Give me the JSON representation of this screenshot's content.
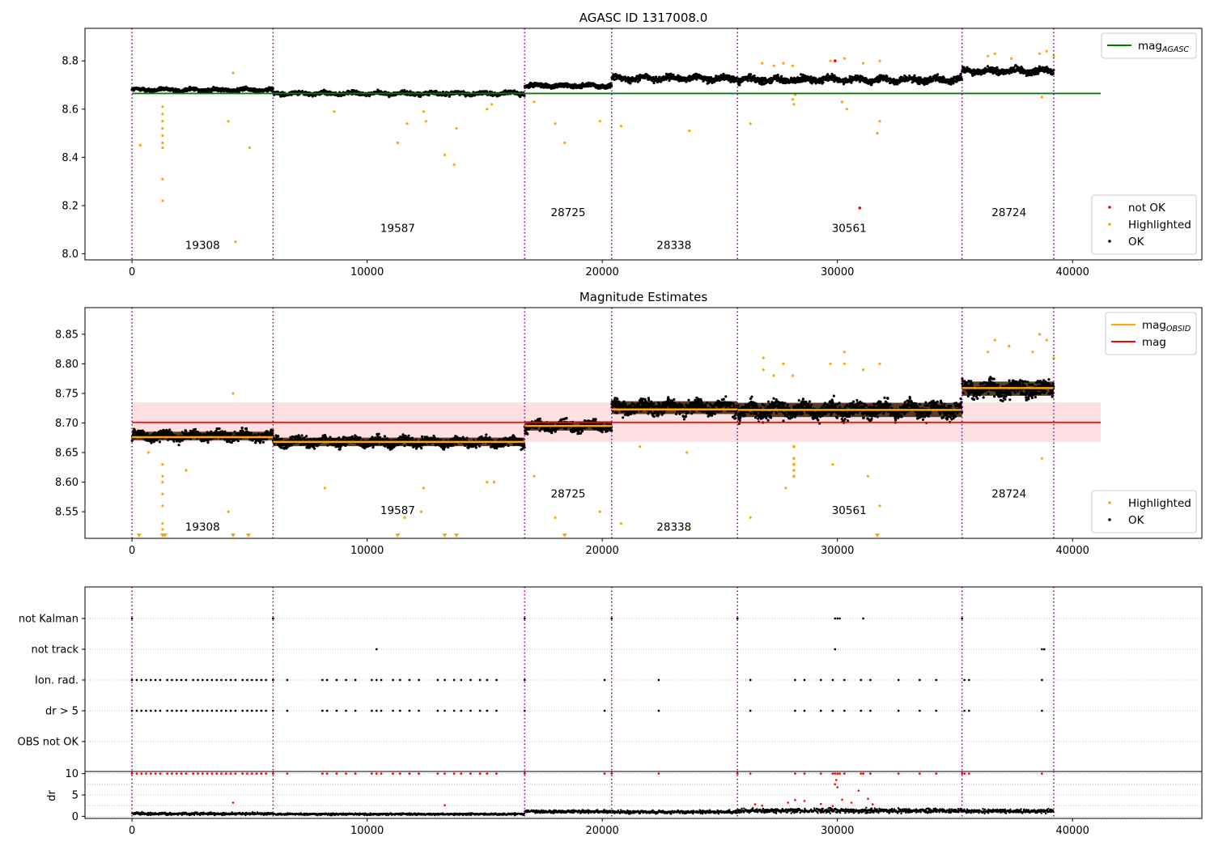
{
  "chart_data": [
    {
      "id": "agasc",
      "type": "scatter",
      "title": "AGASC ID 1317008.0",
      "xlim": [
        -2000,
        45500
      ],
      "ylim": [
        7.975,
        8.935
      ],
      "yticks": [
        8.0,
        8.2,
        8.4,
        8.6,
        8.8
      ],
      "ytick_labels": [
        "8.0",
        "8.2",
        "8.4",
        "8.6",
        "8.8"
      ],
      "xticks": [
        0,
        10000,
        20000,
        30000,
        40000
      ],
      "xtick_labels": [
        "0",
        "10000",
        "20000",
        "30000",
        "40000"
      ],
      "obs_boundaries": [
        0,
        6000,
        16700,
        20400,
        25750,
        35300,
        39200
      ],
      "obs_labels": [
        {
          "text": "19308",
          "x": 3000,
          "y": 8.02
        },
        {
          "text": "19587",
          "x": 11300,
          "y": 8.09
        },
        {
          "text": "28725",
          "x": 18550,
          "y": 8.157
        },
        {
          "text": "28338",
          "x": 23050,
          "y": 8.02
        },
        {
          "text": "30561",
          "x": 30500,
          "y": 8.09
        },
        {
          "text": "28724",
          "x": 37300,
          "y": 8.157
        }
      ],
      "hline": {
        "name": "mag_AGASC",
        "value": 8.665,
        "x_range": [
          0,
          41200
        ],
        "color": "#008000"
      },
      "segments": [
        {
          "x0": 0,
          "x1": 6000,
          "level": 8.68,
          "spread": 0.012
        },
        {
          "x0": 6000,
          "x1": 16700,
          "level": 8.665,
          "spread": 0.012
        },
        {
          "x0": 16700,
          "x1": 20400,
          "level": 8.697,
          "spread": 0.014
        },
        {
          "x0": 20400,
          "x1": 25750,
          "level": 8.728,
          "spread": 0.018
        },
        {
          "x0": 25750,
          "x1": 35300,
          "level": 8.722,
          "spread": 0.02
        },
        {
          "x0": 35300,
          "x1": 39200,
          "level": 8.758,
          "spread": 0.02
        }
      ],
      "highlighted_points": [
        [
          1300,
          8.61
        ],
        [
          1300,
          8.58
        ],
        [
          1300,
          8.55
        ],
        [
          1300,
          8.52
        ],
        [
          1300,
          8.49
        ],
        [
          1300,
          8.46
        ],
        [
          1300,
          8.44
        ],
        [
          1300,
          8.31
        ],
        [
          1300,
          8.22
        ],
        [
          350,
          8.45
        ],
        [
          4100,
          8.55
        ],
        [
          4300,
          8.75
        ],
        [
          4400,
          8.05
        ],
        [
          5000,
          8.44
        ],
        [
          8600,
          8.59
        ],
        [
          11300,
          8.46
        ],
        [
          11700,
          8.54
        ],
        [
          12400,
          8.59
        ],
        [
          12500,
          8.55
        ],
        [
          13300,
          8.41
        ],
        [
          13700,
          8.37
        ],
        [
          13800,
          8.52
        ],
        [
          15100,
          8.6
        ],
        [
          15300,
          8.62
        ],
        [
          17100,
          8.63
        ],
        [
          18000,
          8.54
        ],
        [
          18400,
          8.46
        ],
        [
          19900,
          8.55
        ],
        [
          20800,
          8.53
        ],
        [
          23700,
          8.51
        ],
        [
          26300,
          8.54
        ],
        [
          28100,
          8.64
        ],
        [
          28150,
          8.62
        ],
        [
          28200,
          8.66
        ],
        [
          30200,
          8.63
        ],
        [
          30400,
          8.6
        ],
        [
          31700,
          8.5
        ],
        [
          31800,
          8.55
        ],
        [
          38700,
          8.65
        ],
        [
          26800,
          8.79
        ],
        [
          27300,
          8.78
        ],
        [
          27700,
          8.79
        ],
        [
          28100,
          8.78
        ],
        [
          29700,
          8.8
        ],
        [
          30300,
          8.81
        ],
        [
          31100,
          8.79
        ],
        [
          31800,
          8.8
        ],
        [
          36400,
          8.82
        ],
        [
          36700,
          8.83
        ],
        [
          37400,
          8.81
        ],
        [
          38600,
          8.83
        ],
        [
          38900,
          8.84
        ],
        [
          39200,
          8.82
        ]
      ],
      "not_ok_points": [
        [
          29900,
          8.8
        ],
        [
          30950,
          8.19
        ]
      ],
      "legends": [
        {
          "position": "top-right",
          "entries": [
            {
              "label": "mag",
              "sub": "AGASC",
              "kind": "line",
              "color": "#008000"
            }
          ]
        },
        {
          "position": "lower-right",
          "entries": [
            {
              "label": "not OK",
              "kind": "dot",
              "color": "#ff0000"
            },
            {
              "label": "Highlighted",
              "kind": "dot",
              "color": "#ffa500"
            },
            {
              "label": "OK",
              "kind": "dot",
              "color": "#000000"
            }
          ]
        }
      ]
    },
    {
      "id": "estimates",
      "type": "scatter",
      "title": "Magnitude Estimates",
      "xlim": [
        -2000,
        45500
      ],
      "ylim": [
        8.505,
        8.895
      ],
      "yticks": [
        8.55,
        8.6,
        8.65,
        8.7,
        8.75,
        8.8,
        8.85
      ],
      "ytick_labels": [
        "8.55",
        "8.60",
        "8.65",
        "8.70",
        "8.75",
        "8.80",
        "8.85"
      ],
      "xticks": [
        0,
        10000,
        20000,
        30000,
        40000
      ],
      "xtick_labels": [
        "0",
        "10000",
        "20000",
        "30000",
        "40000"
      ],
      "obs_boundaries": [
        0,
        6000,
        16700,
        20400,
        25750,
        35300,
        39200
      ],
      "obs_labels": [
        {
          "text": "19308",
          "x": 3000,
          "y": 8.518
        },
        {
          "text": "19587",
          "x": 11300,
          "y": 8.546
        },
        {
          "text": "28725",
          "x": 18550,
          "y": 8.574
        },
        {
          "text": "28338",
          "x": 23050,
          "y": 8.518
        },
        {
          "text": "30561",
          "x": 30500,
          "y": 8.546
        },
        {
          "text": "28724",
          "x": 37300,
          "y": 8.574
        }
      ],
      "mag": {
        "value": 8.701,
        "band": [
          8.668,
          8.735
        ],
        "x_range": [
          0,
          41200
        ],
        "color": "#ff0000"
      },
      "mag_obsid": [
        {
          "x0": 0,
          "x1": 6000,
          "value": 8.676
        },
        {
          "x0": 6000,
          "x1": 16700,
          "value": 8.668
        },
        {
          "x0": 16700,
          "x1": 20400,
          "value": 8.695
        },
        {
          "x0": 20400,
          "x1": 25750,
          "value": 8.723
        },
        {
          "x0": 25750,
          "x1": 35300,
          "value": 8.722
        },
        {
          "x0": 35300,
          "x1": 39200,
          "value": 8.759
        }
      ],
      "segments": [
        {
          "x0": 0,
          "x1": 6000,
          "level": 8.678,
          "spread": 0.012
        },
        {
          "x0": 6000,
          "x1": 16700,
          "level": 8.668,
          "spread": 0.012
        },
        {
          "x0": 16700,
          "x1": 20400,
          "level": 8.695,
          "spread": 0.013
        },
        {
          "x0": 20400,
          "x1": 25750,
          "level": 8.726,
          "spread": 0.018
        },
        {
          "x0": 25750,
          "x1": 35300,
          "level": 8.722,
          "spread": 0.02
        },
        {
          "x0": 35300,
          "x1": 39200,
          "level": 8.758,
          "spread": 0.02
        }
      ],
      "highlighted_points": [
        [
          1300,
          8.63
        ],
        [
          1300,
          8.61
        ],
        [
          1300,
          8.6
        ],
        [
          1300,
          8.58
        ],
        [
          1300,
          8.56
        ],
        [
          1300,
          8.53
        ],
        [
          1300,
          8.52
        ],
        [
          700,
          8.65
        ],
        [
          2300,
          8.62
        ],
        [
          4100,
          8.55
        ],
        [
          4300,
          8.75
        ],
        [
          8200,
          8.59
        ],
        [
          11600,
          8.54
        ],
        [
          12300,
          8.55
        ],
        [
          12400,
          8.59
        ],
        [
          15100,
          8.6
        ],
        [
          15400,
          8.6
        ],
        [
          17100,
          8.61
        ],
        [
          18000,
          8.54
        ],
        [
          19900,
          8.55
        ],
        [
          20800,
          8.53
        ],
        [
          21600,
          8.66
        ],
        [
          23600,
          8.65
        ],
        [
          23700,
          8.52
        ],
        [
          26300,
          8.54
        ],
        [
          27800,
          8.59
        ],
        [
          29800,
          8.63
        ],
        [
          31300,
          8.61
        ],
        [
          31800,
          8.56
        ],
        [
          38700,
          8.64
        ],
        [
          26850,
          8.81
        ],
        [
          26850,
          8.79
        ],
        [
          27300,
          8.78
        ],
        [
          27700,
          8.8
        ],
        [
          28100,
          8.78
        ],
        [
          29700,
          8.8
        ],
        [
          30300,
          8.82
        ],
        [
          30300,
          8.8
        ],
        [
          31100,
          8.79
        ],
        [
          31800,
          8.8
        ],
        [
          36400,
          8.82
        ],
        [
          36700,
          8.84
        ],
        [
          37300,
          8.83
        ],
        [
          38300,
          8.82
        ],
        [
          38600,
          8.85
        ],
        [
          38900,
          8.84
        ],
        [
          39200,
          8.81
        ]
      ],
      "dip_points": [
        [
          28150,
          8.66
        ],
        [
          28150,
          8.64
        ],
        [
          28150,
          8.63
        ],
        [
          28150,
          8.62
        ],
        [
          28150,
          8.61
        ]
      ],
      "clipped_points": [
        300,
        1300,
        1400,
        4300,
        4950,
        11300,
        13300,
        13800,
        18400,
        31700
      ],
      "legends": [
        {
          "position": "top-right",
          "entries": [
            {
              "label": "mag",
              "sub": "OBSID",
              "kind": "line",
              "color": "#ffa500"
            },
            {
              "label": "mag",
              "sub": "",
              "kind": "line",
              "color": "#ff0000"
            }
          ]
        },
        {
          "position": "lower-right",
          "entries": [
            {
              "label": "Highlighted",
              "kind": "dot",
              "color": "#ffa500"
            },
            {
              "label": "OK",
              "kind": "dot",
              "color": "#000000"
            }
          ]
        }
      ]
    },
    {
      "id": "flags",
      "type": "scatter",
      "categories": [
        "not Kalman",
        "not track",
        "Ion. rad.",
        "dr > 5",
        "OBS not OK"
      ],
      "xlim": [
        -2000,
        45500
      ],
      "obs_boundaries": [
        0,
        6000,
        16700,
        20400,
        25750,
        35300,
        39200
      ],
      "flag_points": {
        "not Kalman": [
          0,
          6000,
          16700,
          20400,
          25750,
          29900,
          30000,
          30100,
          31100,
          35300
        ],
        "not track": [
          10400,
          29900,
          38700,
          38800
        ],
        "Ion. rad.": [
          0,
          200,
          400,
          600,
          800,
          1000,
          1200,
          1500,
          1700,
          1900,
          2100,
          2300,
          2600,
          2800,
          3000,
          3200,
          3400,
          3600,
          3800,
          4000,
          4200,
          4400,
          4700,
          4900,
          5100,
          5300,
          5500,
          5700,
          6000,
          6600,
          8100,
          8300,
          8700,
          9100,
          9500,
          10200,
          10400,
          10600,
          11100,
          11400,
          11800,
          12200,
          13000,
          13300,
          13700,
          14000,
          14400,
          14800,
          15100,
          15500,
          16700,
          20100,
          22400,
          26300,
          28200,
          28600,
          29300,
          29800,
          30300,
          31000,
          31400,
          32600,
          33500,
          34200,
          35400,
          35600,
          38700
        ],
        "dr > 5": [
          0,
          200,
          400,
          600,
          800,
          1000,
          1200,
          1500,
          1700,
          1900,
          2100,
          2300,
          2600,
          2800,
          3000,
          3200,
          3400,
          3600,
          3800,
          4000,
          4200,
          4400,
          4700,
          4900,
          5100,
          5300,
          5500,
          5700,
          6000,
          6600,
          8100,
          8300,
          8700,
          9100,
          9500,
          10200,
          10400,
          10600,
          11100,
          11400,
          11800,
          12200,
          13000,
          13300,
          13700,
          14000,
          14400,
          14800,
          15100,
          15500,
          16700,
          20100,
          22400,
          26300,
          28200,
          28600,
          29300,
          29800,
          30300,
          31000,
          31400,
          32600,
          33500,
          34200,
          35400,
          35600,
          38700
        ],
        "OBS not OK": []
      }
    },
    {
      "id": "dr",
      "type": "scatter",
      "ylabel": "dr",
      "xlim": [
        -2000,
        45500
      ],
      "ylim": [
        -0.5,
        10.5
      ],
      "yticks": [
        0,
        5,
        10
      ],
      "ytick_labels": [
        "0",
        "5",
        "10"
      ],
      "xticks": [
        0,
        10000,
        20000,
        30000,
        40000
      ],
      "xtick_labels": [
        "0",
        "10000",
        "20000",
        "30000",
        "40000"
      ],
      "obs_boundaries": [
        0,
        6000,
        16700,
        20400,
        25750,
        35300,
        39200
      ],
      "segments": [
        {
          "x0": 0,
          "x1": 6000,
          "level": 0.6,
          "spread": 0.4
        },
        {
          "x0": 6000,
          "x1": 16700,
          "level": 0.5,
          "spread": 0.3
        },
        {
          "x0": 16700,
          "x1": 20400,
          "level": 1.1,
          "spread": 0.5
        },
        {
          "x0": 20400,
          "x1": 25750,
          "level": 1.0,
          "spread": 0.5
        },
        {
          "x0": 25750,
          "x1": 35300,
          "level": 1.3,
          "spread": 0.7
        },
        {
          "x0": 35300,
          "x1": 39200,
          "level": 1.2,
          "spread": 0.6
        }
      ],
      "red_at_ten": [
        0,
        200,
        400,
        600,
        800,
        1000,
        1200,
        1500,
        1700,
        1900,
        2100,
        2300,
        2600,
        2800,
        3000,
        3200,
        3400,
        3600,
        3800,
        4000,
        4200,
        4400,
        4700,
        4900,
        5100,
        5300,
        5500,
        5700,
        6000,
        6600,
        8100,
        8300,
        8700,
        9100,
        9500,
        10200,
        10400,
        10600,
        11100,
        11400,
        11800,
        12200,
        13000,
        13300,
        13700,
        14000,
        14400,
        14800,
        15100,
        15500,
        16700,
        20100,
        20400,
        22400,
        25750,
        26300,
        28200,
        28600,
        29300,
        29800,
        29900,
        30000,
        30100,
        30300,
        31000,
        31100,
        31400,
        32600,
        33500,
        34200,
        35300,
        35400,
        35600,
        38700
      ],
      "red_scatter": [
        [
          26500,
          2.8
        ],
        [
          26800,
          2.5
        ],
        [
          27900,
          3.2
        ],
        [
          28200,
          3.8
        ],
        [
          28600,
          3.6
        ],
        [
          29300,
          2.9
        ],
        [
          29800,
          2.4
        ],
        [
          29900,
          7.5
        ],
        [
          29950,
          8.5
        ],
        [
          30000,
          6.8
        ],
        [
          30200,
          3.9
        ],
        [
          30600,
          3.2
        ],
        [
          30900,
          6.0
        ],
        [
          31300,
          4.1
        ],
        [
          31500,
          2.8
        ],
        [
          4300,
          3.2
        ],
        [
          13300,
          2.6
        ]
      ]
    }
  ]
}
